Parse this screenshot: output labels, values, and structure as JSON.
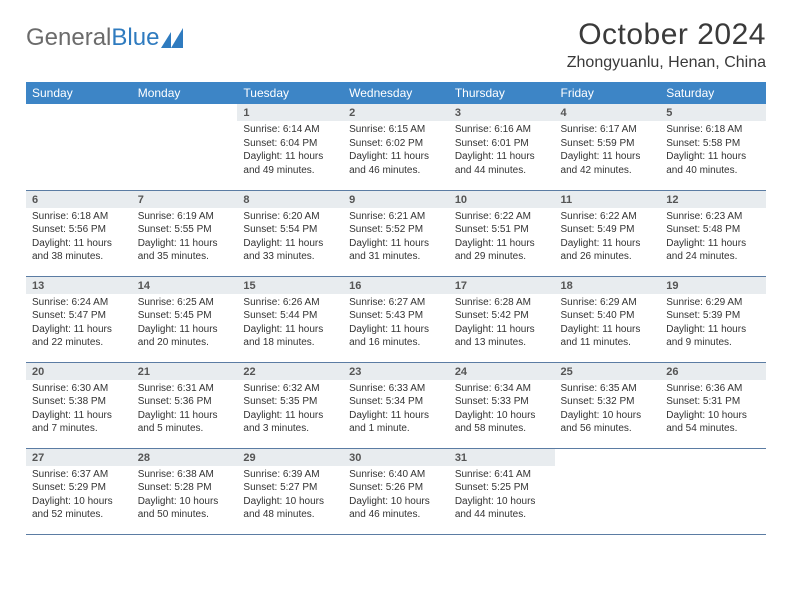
{
  "logo": {
    "text1": "General",
    "text2": "Blue",
    "accent": "#2f7bbf"
  },
  "title": "October 2024",
  "location": "Zhongyuanlu, Henan, China",
  "colors": {
    "header_bg": "#3d85c6",
    "header_fg": "#ffffff",
    "daynum_bg": "#e8ecef",
    "border": "#5b7ca3"
  },
  "dayHeaders": [
    "Sunday",
    "Monday",
    "Tuesday",
    "Wednesday",
    "Thursday",
    "Friday",
    "Saturday"
  ],
  "layout": {
    "firstDayCol": 2,
    "daysInMonth": 31,
    "rows": 5,
    "cols": 7
  },
  "days": {
    "1": {
      "sunrise": "6:14 AM",
      "sunset": "6:04 PM",
      "daylight": "11 hours and 49 minutes."
    },
    "2": {
      "sunrise": "6:15 AM",
      "sunset": "6:02 PM",
      "daylight": "11 hours and 46 minutes."
    },
    "3": {
      "sunrise": "6:16 AM",
      "sunset": "6:01 PM",
      "daylight": "11 hours and 44 minutes."
    },
    "4": {
      "sunrise": "6:17 AM",
      "sunset": "5:59 PM",
      "daylight": "11 hours and 42 minutes."
    },
    "5": {
      "sunrise": "6:18 AM",
      "sunset": "5:58 PM",
      "daylight": "11 hours and 40 minutes."
    },
    "6": {
      "sunrise": "6:18 AM",
      "sunset": "5:56 PM",
      "daylight": "11 hours and 38 minutes."
    },
    "7": {
      "sunrise": "6:19 AM",
      "sunset": "5:55 PM",
      "daylight": "11 hours and 35 minutes."
    },
    "8": {
      "sunrise": "6:20 AM",
      "sunset": "5:54 PM",
      "daylight": "11 hours and 33 minutes."
    },
    "9": {
      "sunrise": "6:21 AM",
      "sunset": "5:52 PM",
      "daylight": "11 hours and 31 minutes."
    },
    "10": {
      "sunrise": "6:22 AM",
      "sunset": "5:51 PM",
      "daylight": "11 hours and 29 minutes."
    },
    "11": {
      "sunrise": "6:22 AM",
      "sunset": "5:49 PM",
      "daylight": "11 hours and 26 minutes."
    },
    "12": {
      "sunrise": "6:23 AM",
      "sunset": "5:48 PM",
      "daylight": "11 hours and 24 minutes."
    },
    "13": {
      "sunrise": "6:24 AM",
      "sunset": "5:47 PM",
      "daylight": "11 hours and 22 minutes."
    },
    "14": {
      "sunrise": "6:25 AM",
      "sunset": "5:45 PM",
      "daylight": "11 hours and 20 minutes."
    },
    "15": {
      "sunrise": "6:26 AM",
      "sunset": "5:44 PM",
      "daylight": "11 hours and 18 minutes."
    },
    "16": {
      "sunrise": "6:27 AM",
      "sunset": "5:43 PM",
      "daylight": "11 hours and 16 minutes."
    },
    "17": {
      "sunrise": "6:28 AM",
      "sunset": "5:42 PM",
      "daylight": "11 hours and 13 minutes."
    },
    "18": {
      "sunrise": "6:29 AM",
      "sunset": "5:40 PM",
      "daylight": "11 hours and 11 minutes."
    },
    "19": {
      "sunrise": "6:29 AM",
      "sunset": "5:39 PM",
      "daylight": "11 hours and 9 minutes."
    },
    "20": {
      "sunrise": "6:30 AM",
      "sunset": "5:38 PM",
      "daylight": "11 hours and 7 minutes."
    },
    "21": {
      "sunrise": "6:31 AM",
      "sunset": "5:36 PM",
      "daylight": "11 hours and 5 minutes."
    },
    "22": {
      "sunrise": "6:32 AM",
      "sunset": "5:35 PM",
      "daylight": "11 hours and 3 minutes."
    },
    "23": {
      "sunrise": "6:33 AM",
      "sunset": "5:34 PM",
      "daylight": "11 hours and 1 minute."
    },
    "24": {
      "sunrise": "6:34 AM",
      "sunset": "5:33 PM",
      "daylight": "10 hours and 58 minutes."
    },
    "25": {
      "sunrise": "6:35 AM",
      "sunset": "5:32 PM",
      "daylight": "10 hours and 56 minutes."
    },
    "26": {
      "sunrise": "6:36 AM",
      "sunset": "5:31 PM",
      "daylight": "10 hours and 54 minutes."
    },
    "27": {
      "sunrise": "6:37 AM",
      "sunset": "5:29 PM",
      "daylight": "10 hours and 52 minutes."
    },
    "28": {
      "sunrise": "6:38 AM",
      "sunset": "5:28 PM",
      "daylight": "10 hours and 50 minutes."
    },
    "29": {
      "sunrise": "6:39 AM",
      "sunset": "5:27 PM",
      "daylight": "10 hours and 48 minutes."
    },
    "30": {
      "sunrise": "6:40 AM",
      "sunset": "5:26 PM",
      "daylight": "10 hours and 46 minutes."
    },
    "31": {
      "sunrise": "6:41 AM",
      "sunset": "5:25 PM",
      "daylight": "10 hours and 44 minutes."
    }
  },
  "labels": {
    "sunrise": "Sunrise:",
    "sunset": "Sunset:",
    "daylight": "Daylight:"
  }
}
